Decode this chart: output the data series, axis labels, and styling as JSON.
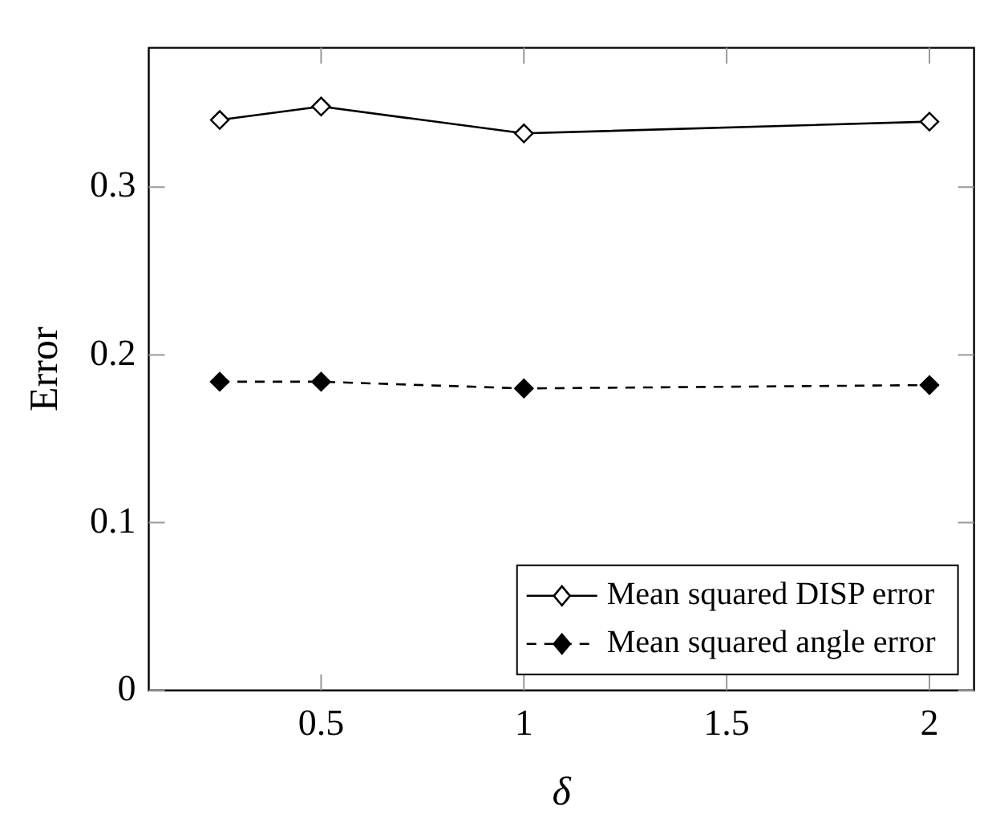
{
  "chart_data": {
    "type": "line",
    "xlabel": "δ",
    "ylabel": "Error",
    "x": [
      0.25,
      0.5,
      1,
      2
    ],
    "series": [
      {
        "name": "Mean squared DISP error",
        "color": "#000000",
        "line_style": "solid",
        "values": [
          0.34,
          0.348,
          0.332,
          0.339
        ]
      },
      {
        "name": "Mean squared angle error",
        "color": "#000000",
        "line_style": "dashed",
        "values": [
          0.184,
          0.184,
          0.18,
          0.182
        ]
      }
    ],
    "xlim": [
      0.075,
      2.11
    ],
    "xticks": [
      0.5,
      1,
      1.5,
      2
    ],
    "ylim": [
      0,
      0.383
    ],
    "yticks": [
      0,
      0.1,
      0.2,
      0.3
    ],
    "marker": "diamond",
    "legend": "bottom right",
    "grid": false
  }
}
